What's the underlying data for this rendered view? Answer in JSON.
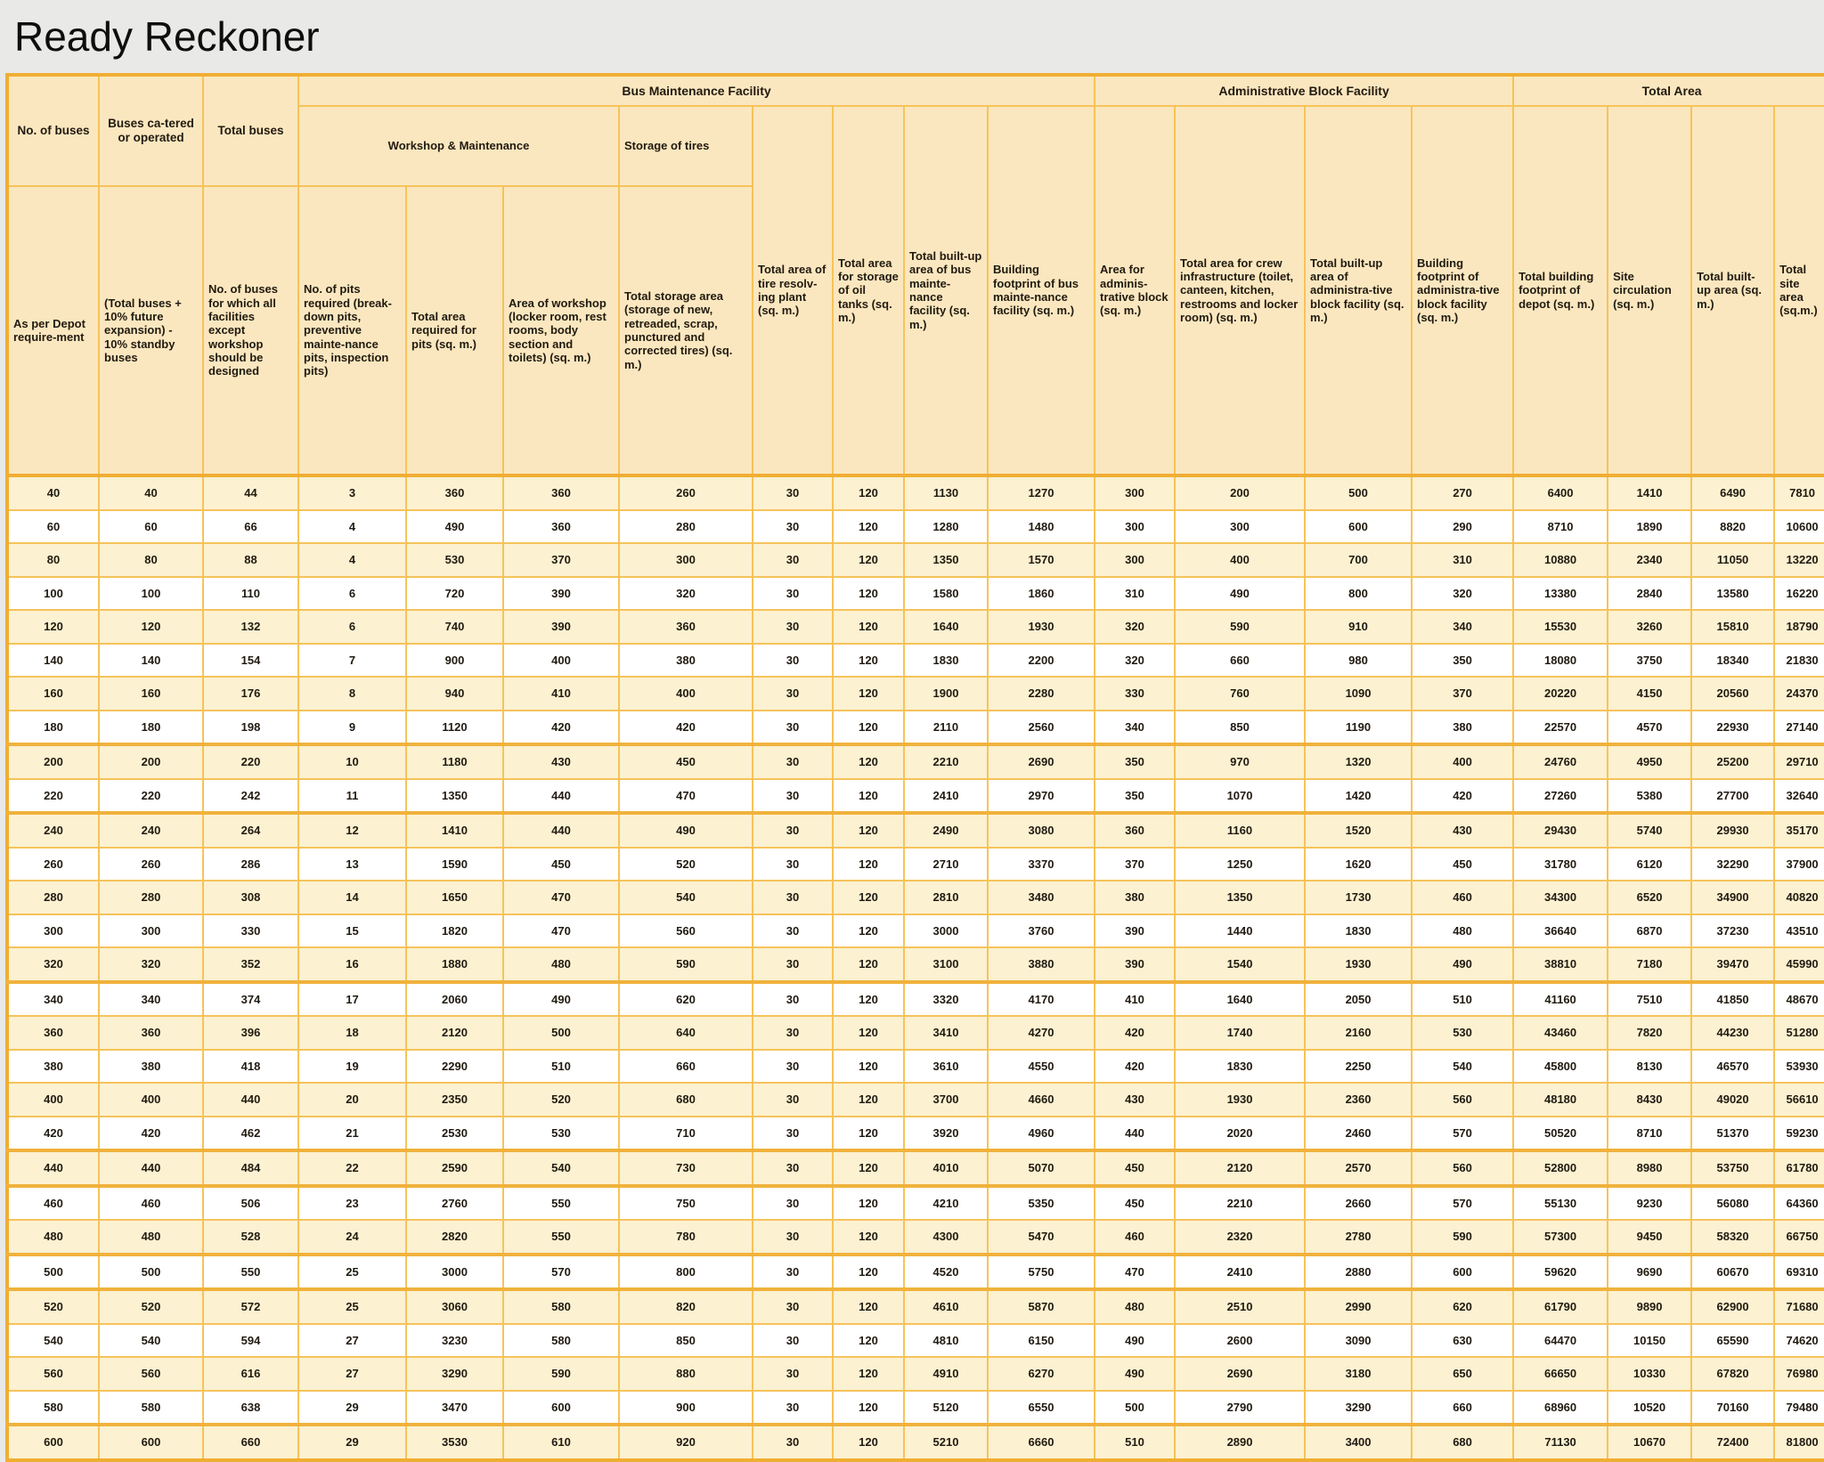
{
  "title": "Ready Reckoner",
  "table": {
    "groups": [
      {
        "label": "Bus Maintenance Facility",
        "span": 8
      },
      {
        "label": "Administrative Block Facility",
        "span": 4
      },
      {
        "label": "Total Area",
        "span": 4
      }
    ],
    "subgroups": [
      {
        "label": "Workshop & Maintenance",
        "span": 3
      },
      {
        "label": "Storage of tires",
        "span": 1
      }
    ],
    "top_headers": [
      "No. of buses",
      "Buses ca-tered or operated",
      "Total buses"
    ],
    "col_headers": [
      "As per Depot require-ment",
      "(Total buses + 10% future expansion) - 10% standby buses",
      "No. of buses for which all facilities except workshop should be designed",
      "No. of pits required (break-down pits, preventive mainte-nance pits, inspection pits)",
      "Total area required for pits (sq. m.)",
      "Area of workshop (locker room, rest rooms, body section and toilets) (sq. m.)",
      "Total storage area (storage of new, retreaded, scrap, punctured and corrected tires) (sq. m.)",
      "Total area of tire resolv-ing plant (sq. m.)",
      "Total area for storage of oil tanks (sq. m.)",
      "Total built-up area of bus mainte-nance facility (sq. m.)",
      "Building footprint of bus mainte-nance facility (sq. m.)",
      "Area for adminis-trative block (sq. m.)",
      "Total area for crew infrastructure (toilet, canteen, kitchen, restrooms and locker room) (sq. m.)",
      "Total built-up area of administra-tive block facility (sq. m.)",
      "Building footprint of administra-tive block facility (sq. m.)",
      "Total building footprint of depot (sq. m.)",
      "Site circulation (sq. m.)",
      "Total built-up area (sq. m.)",
      "Total site area (sq.m.)"
    ],
    "rows": [
      [
        40,
        40,
        44,
        3,
        360,
        360,
        260,
        30,
        120,
        1130,
        1270,
        300,
        200,
        500,
        270,
        6400,
        1410,
        6490,
        7810
      ],
      [
        60,
        60,
        66,
        4,
        490,
        360,
        280,
        30,
        120,
        1280,
        1480,
        300,
        300,
        600,
        290,
        8710,
        1890,
        8820,
        10600
      ],
      [
        80,
        80,
        88,
        4,
        530,
        370,
        300,
        30,
        120,
        1350,
        1570,
        300,
        400,
        700,
        310,
        10880,
        2340,
        11050,
        13220
      ],
      [
        100,
        100,
        110,
        6,
        720,
        390,
        320,
        30,
        120,
        1580,
        1860,
        310,
        490,
        800,
        320,
        13380,
        2840,
        13580,
        16220
      ],
      [
        120,
        120,
        132,
        6,
        740,
        390,
        360,
        30,
        120,
        1640,
        1930,
        320,
        590,
        910,
        340,
        15530,
        3260,
        15810,
        18790
      ],
      [
        140,
        140,
        154,
        7,
        900,
        400,
        380,
        30,
        120,
        1830,
        2200,
        320,
        660,
        980,
        350,
        18080,
        3750,
        18340,
        21830
      ],
      [
        160,
        160,
        176,
        8,
        940,
        410,
        400,
        30,
        120,
        1900,
        2280,
        330,
        760,
        1090,
        370,
        20220,
        4150,
        20560,
        24370
      ],
      [
        180,
        180,
        198,
        9,
        1120,
        420,
        420,
        30,
        120,
        2110,
        2560,
        340,
        850,
        1190,
        380,
        22570,
        4570,
        22930,
        27140
      ],
      [
        200,
        200,
        220,
        10,
        1180,
        430,
        450,
        30,
        120,
        2210,
        2690,
        350,
        970,
        1320,
        400,
        24760,
        4950,
        25200,
        29710
      ],
      [
        220,
        220,
        242,
        11,
        1350,
        440,
        470,
        30,
        120,
        2410,
        2970,
        350,
        1070,
        1420,
        420,
        27260,
        5380,
        27700,
        32640
      ],
      [
        240,
        240,
        264,
        12,
        1410,
        440,
        490,
        30,
        120,
        2490,
        3080,
        360,
        1160,
        1520,
        430,
        29430,
        5740,
        29930,
        35170
      ],
      [
        260,
        260,
        286,
        13,
        1590,
        450,
        520,
        30,
        120,
        2710,
        3370,
        370,
        1250,
        1620,
        450,
        31780,
        6120,
        32290,
        37900
      ],
      [
        280,
        280,
        308,
        14,
        1650,
        470,
        540,
        30,
        120,
        2810,
        3480,
        380,
        1350,
        1730,
        460,
        34300,
        6520,
        34900,
        40820
      ],
      [
        300,
        300,
        330,
        15,
        1820,
        470,
        560,
        30,
        120,
        3000,
        3760,
        390,
        1440,
        1830,
        480,
        36640,
        6870,
        37230,
        43510
      ],
      [
        320,
        320,
        352,
        16,
        1880,
        480,
        590,
        30,
        120,
        3100,
        3880,
        390,
        1540,
        1930,
        490,
        38810,
        7180,
        39470,
        45990
      ],
      [
        340,
        340,
        374,
        17,
        2060,
        490,
        620,
        30,
        120,
        3320,
        4170,
        410,
        1640,
        2050,
        510,
        41160,
        7510,
        41850,
        48670
      ],
      [
        360,
        360,
        396,
        18,
        2120,
        500,
        640,
        30,
        120,
        3410,
        4270,
        420,
        1740,
        2160,
        530,
        43460,
        7820,
        44230,
        51280
      ],
      [
        380,
        380,
        418,
        19,
        2290,
        510,
        660,
        30,
        120,
        3610,
        4550,
        420,
        1830,
        2250,
        540,
        45800,
        8130,
        46570,
        53930
      ],
      [
        400,
        400,
        440,
        20,
        2350,
        520,
        680,
        30,
        120,
        3700,
        4660,
        430,
        1930,
        2360,
        560,
        48180,
        8430,
        49020,
        56610
      ],
      [
        420,
        420,
        462,
        21,
        2530,
        530,
        710,
        30,
        120,
        3920,
        4960,
        440,
        2020,
        2460,
        570,
        50520,
        8710,
        51370,
        59230
      ],
      [
        440,
        440,
        484,
        22,
        2590,
        540,
        730,
        30,
        120,
        4010,
        5070,
        450,
        2120,
        2570,
        560,
        52800,
        8980,
        53750,
        61780
      ],
      [
        460,
        460,
        506,
        23,
        2760,
        550,
        750,
        30,
        120,
        4210,
        5350,
        450,
        2210,
        2660,
        570,
        55130,
        9230,
        56080,
        64360
      ],
      [
        480,
        480,
        528,
        24,
        2820,
        550,
        780,
        30,
        120,
        4300,
        5470,
        460,
        2320,
        2780,
        590,
        57300,
        9450,
        58320,
        66750
      ],
      [
        500,
        500,
        550,
        25,
        3000,
        570,
        800,
        30,
        120,
        4520,
        5750,
        470,
        2410,
        2880,
        600,
        59620,
        9690,
        60670,
        69310
      ],
      [
        520,
        520,
        572,
        25,
        3060,
        580,
        820,
        30,
        120,
        4610,
        5870,
        480,
        2510,
        2990,
        620,
        61790,
        9890,
        62900,
        71680
      ],
      [
        540,
        540,
        594,
        27,
        3230,
        580,
        850,
        30,
        120,
        4810,
        6150,
        490,
        2600,
        3090,
        630,
        64470,
        10150,
        65590,
        74620
      ],
      [
        560,
        560,
        616,
        27,
        3290,
        590,
        880,
        30,
        120,
        4910,
        6270,
        490,
        2690,
        3180,
        650,
        66650,
        10330,
        67820,
        76980
      ],
      [
        580,
        580,
        638,
        29,
        3470,
        600,
        900,
        30,
        120,
        5120,
        6550,
        500,
        2790,
        3290,
        660,
        68960,
        10520,
        70160,
        79480
      ],
      [
        600,
        600,
        660,
        29,
        3530,
        610,
        920,
        30,
        120,
        5210,
        6660,
        510,
        2890,
        3400,
        680,
        71130,
        10670,
        72400,
        81800
      ]
    ]
  },
  "colors": {
    "header_fill": "#fbe7bf",
    "row_cream": "#fcf1d1",
    "row_white": "#ffffff",
    "border_gold": "#f6c35a",
    "border_strong": "#f0ae33",
    "page_background": "#e9e9e7",
    "text": "#201a10"
  }
}
